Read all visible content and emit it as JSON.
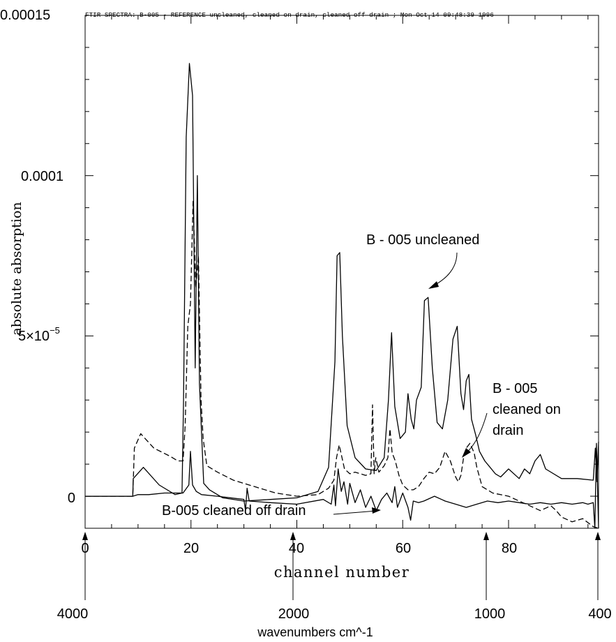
{
  "chart_data": {
    "type": "line",
    "title": "FTIR SPECTRA: B-005 - REFERENCE uncleaned, cleaned on drain, cleaned off drain ; Mon Oct 14 09:48:39 1996",
    "xlabel": "channel number",
    "ylabel": "absolute absorption",
    "xlim": [
      0,
      97
    ],
    "ylim": [
      -1e-05,
      0.00015
    ],
    "x_ticks": [
      "0",
      "20",
      "40",
      "60",
      "80"
    ],
    "x_tick_values": [
      0,
      20,
      40,
      60,
      80
    ],
    "y_ticks": [
      "0",
      "5×10",
      "0.0001",
      "0.00015"
    ],
    "y_tick_exponent": "−5",
    "y_tick_values": [
      0,
      5e-05,
      0.0001,
      0.00015
    ],
    "grid": false,
    "secondary_axis": {
      "label": "wavenumbers cm^-1",
      "ticks": [
        "4000",
        "2000",
        "1000",
        "400"
      ],
      "ticks_channel": [
        0,
        39,
        76,
        97
      ]
    },
    "annotations": [
      {
        "text": "B - 005 uncleaned",
        "points_to": [
          64,
          6.15e-05
        ]
      },
      {
        "text": "B - 005",
        "points_to": [
          70,
          1.6e-05
        ]
      },
      {
        "text": "cleaned on",
        "points_to": [
          70,
          1.6e-05
        ]
      },
      {
        "text": "drain",
        "points_to": [
          70,
          1.6e-05
        ]
      },
      {
        "text": "B-005 cleaned off drain",
        "points_to": [
          55,
          -4.5e-06
        ]
      }
    ],
    "series": [
      {
        "style": "solid",
        "x": [
          0,
          9,
          9.1,
          11,
          14,
          17,
          18.3,
          18.6,
          19.1,
          19.7,
          20.3,
          20.8,
          21.2,
          21.6,
          22.4,
          23.5,
          26,
          30,
          35,
          40,
          44,
          46,
          47.2,
          47.6,
          48.1,
          48.6,
          49.5,
          51,
          53,
          55,
          56.5,
          57.3,
          57.9,
          58.5,
          59.5,
          60.5,
          61,
          61.6,
          62.1,
          62.6,
          63.5,
          64.1,
          64.8,
          65.6,
          66.5,
          67.5,
          68.5,
          69.5,
          70.3,
          71,
          71.5,
          72,
          72.5,
          73,
          73.8,
          74.5,
          75.5,
          76.5,
          77.5,
          78.5,
          80,
          82,
          83,
          84,
          85,
          86,
          87,
          90,
          93,
          96,
          96.4,
          96.7,
          97
        ],
        "y": [
          0,
          0,
          5.5e-06,
          9e-06,
          3.5e-06,
          5e-07,
          1e-06,
          3e-05,
          0.000112,
          0.000135,
          0.000125,
          4e-05,
          0.0001,
          3.5e-05,
          4e-06,
          2e-06,
          -5e-07,
          -1.5e-06,
          -1e-06,
          -5e-07,
          1.5e-06,
          9e-06,
          4.2e-05,
          7.5e-05,
          7.6e-05,
          5e-05,
          2.2e-05,
          1.2e-05,
          8.5e-06,
          8e-06,
          1.2e-05,
          3e-05,
          5.1e-05,
          2.8e-05,
          1.8e-05,
          2e-05,
          3.2e-05,
          2.4e-05,
          2.1e-05,
          3e-05,
          3.4e-05,
          6.1e-05,
          6.2e-05,
          4e-05,
          2.3e-05,
          2.1e-05,
          3e-05,
          4.9e-05,
          5.3e-05,
          3.2e-05,
          2.7e-05,
          3.6e-05,
          3.8e-05,
          2.4e-05,
          1.9e-05,
          1.4e-05,
          1.1e-05,
          9e-06,
          7e-06,
          6e-06,
          8.5e-06,
          5.5e-06,
          8.5e-06,
          7e-06,
          1.1e-05,
          1.3e-05,
          8.5e-06,
          5.5e-06,
          5.5e-06,
          5e-06,
          1.5e-05,
          4.5e-06,
          1.7e-05
        ]
      },
      {
        "style": "dashed",
        "x": [
          0,
          9,
          9.3,
          10.5,
          13,
          16,
          17.5,
          18.5,
          18.9,
          19.4,
          19.9,
          20.4,
          20.9,
          21.4,
          21.9,
          22.3,
          23,
          25,
          28,
          32,
          36,
          40,
          44,
          46,
          47,
          47.5,
          48,
          49,
          50,
          51,
          52,
          53,
          54,
          54.3,
          54.6,
          54.9,
          55.5,
          56.5,
          57.2,
          57.6,
          58,
          58.6,
          59.3,
          60,
          61,
          62,
          63,
          64,
          65,
          66,
          67,
          68,
          69,
          70,
          70.5,
          71,
          71.5,
          72,
          72.7,
          73.5,
          74,
          75,
          77,
          80,
          82,
          84,
          86,
          88,
          89,
          90,
          92,
          94,
          96,
          97
        ],
        "y": [
          0,
          0,
          1.5e-05,
          1.95e-05,
          1.5e-05,
          1.25e-05,
          1.1e-05,
          1.1e-05,
          2.2e-05,
          5.3e-05,
          6e-05,
          9.2e-05,
          6.5e-05,
          7.5e-05,
          3e-05,
          1.8e-05,
          9.5e-06,
          7.5e-06,
          5e-06,
          3e-06,
          1e-06,
          0,
          5e-07,
          2.5e-06,
          5e-06,
          1.2e-05,
          1.6e-05,
          8.5e-06,
          7e-06,
          7.5e-06,
          7e-06,
          6.5e-06,
          7e-06,
          2.85e-05,
          7e-06,
          1.2e-05,
          7.5e-06,
          9.5e-06,
          1.2e-05,
          2.1e-05,
          1.35e-05,
          1.1e-05,
          6.5e-06,
          3.5e-06,
          2e-06,
          2e-06,
          3e-06,
          5.5e-06,
          7.5e-06,
          7e-06,
          9e-06,
          1.4e-05,
          1.1e-05,
          6e-06,
          4.5e-06,
          6.5e-06,
          1.2e-05,
          1.5e-05,
          1.65e-05,
          1.35e-05,
          9e-06,
          3e-06,
          1e-06,
          0,
          -1.5e-06,
          -3e-06,
          -4.5e-06,
          -3e-06,
          -4.5e-06,
          -6.5e-06,
          -8e-06,
          -7e-06,
          -9.5e-06,
          -1e-05
        ]
      },
      {
        "style": "solid",
        "x": [
          0,
          9,
          10,
          12,
          15,
          18.5,
          19.6,
          19.9,
          20.3,
          21,
          22,
          25,
          30,
          30.3,
          30.6,
          31,
          35,
          40,
          45,
          46.5,
          47,
          47.3,
          47.8,
          48.4,
          48.9,
          49.6,
          50,
          51,
          52,
          53,
          54,
          55,
          56,
          57,
          58,
          58.5,
          59,
          60,
          61,
          61.5,
          62,
          63,
          64,
          66,
          68,
          70,
          72,
          74,
          76,
          78,
          80,
          82,
          84,
          86,
          88,
          90,
          92,
          94,
          95,
          96,
          96.3,
          96.6,
          97
        ],
        "y": [
          0,
          0,
          5e-07,
          5e-07,
          1e-06,
          1e-06,
          3.5e-06,
          1.4e-05,
          3.5e-06,
          1.5e-06,
          5e-07,
          0,
          -1e-06,
          -4.5e-06,
          2.5e-06,
          -1.5e-06,
          -2e-06,
          -2.5e-06,
          -1e-06,
          -2.5e-06,
          3.5e-06,
          -3e-06,
          8.5e-06,
          1.5e-06,
          4.5e-06,
          -2.5e-06,
          4e-06,
          -2e-06,
          2e-06,
          -3.5e-06,
          0,
          -4.5e-06,
          -1e-06,
          1e-06,
          -2e-06,
          3e-06,
          -3.5e-06,
          1e-06,
          -3.5e-06,
          -7.5e-06,
          -1.5e-06,
          -2e-06,
          -1.5e-06,
          0,
          -1.5e-06,
          -2.5e-06,
          -3.5e-06,
          -2.5e-06,
          -1.5e-06,
          -2e-06,
          -1.5e-06,
          -2e-06,
          -2.5e-06,
          -2e-06,
          -2.5e-06,
          -2e-06,
          -2.5e-06,
          -2e-06,
          -2.5e-06,
          -2e-06,
          -1e-05,
          1.65e-05,
          -1e-05
        ]
      }
    ]
  }
}
